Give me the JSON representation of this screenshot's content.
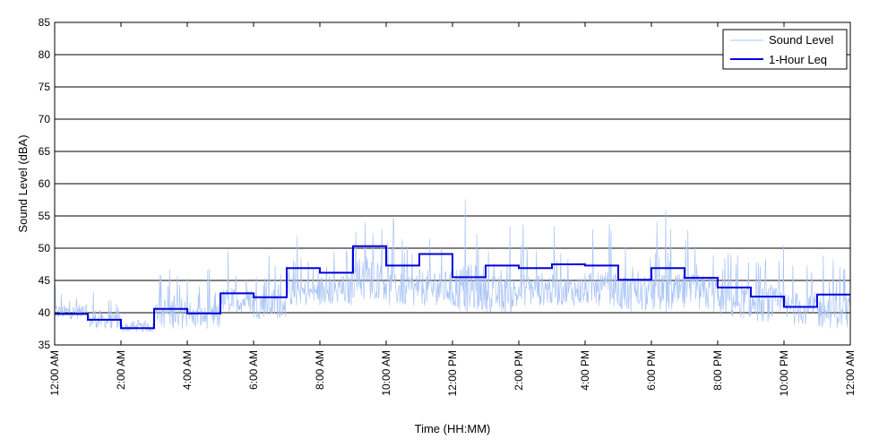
{
  "chart_data": {
    "type": "line",
    "title": "",
    "xlabel": "Time (HH:MM)",
    "ylabel": "Sound Level (dBA)",
    "ylim": [
      35,
      85
    ],
    "xlim": [
      0,
      24
    ],
    "y_ticks": [
      35,
      40,
      45,
      50,
      55,
      60,
      65,
      70,
      75,
      80,
      85
    ],
    "x_ticks": [
      0,
      2,
      4,
      6,
      8,
      10,
      12,
      14,
      16,
      18,
      20,
      22,
      24
    ],
    "x_tick_labels": [
      "12:00 AM",
      "2:00 AM",
      "4:00 AM",
      "6:00 AM",
      "8:00 AM",
      "10:00 AM",
      "12:00 PM",
      "2:00 PM",
      "4:00 PM",
      "6:00 PM",
      "8:00 PM",
      "10:00 PM",
      "12:00 AM"
    ],
    "grid": "horizontal",
    "legend_position": "top-right",
    "series": [
      {
        "name": "Sound Level",
        "color": "#a9c4f5",
        "style": "thin-noisy-line",
        "hourly_profile": [
          {
            "hour": 0,
            "base": 39,
            "peak": 45
          },
          {
            "hour": 1,
            "base": 37.5,
            "peak": 44
          },
          {
            "hour": 2,
            "base": 37,
            "peak": 39
          },
          {
            "hour": 3,
            "base": 37.5,
            "peak": 51
          },
          {
            "hour": 4,
            "base": 37.5,
            "peak": 47
          },
          {
            "hour": 5,
            "base": 40,
            "peak": 50
          },
          {
            "hour": 6,
            "base": 39,
            "peak": 52
          },
          {
            "hour": 7,
            "base": 41,
            "peak": 52
          },
          {
            "hour": 8,
            "base": 41,
            "peak": 54
          },
          {
            "hour": 9,
            "base": 42,
            "peak": 59
          },
          {
            "hour": 10,
            "base": 41,
            "peak": 55
          },
          {
            "hour": 11,
            "base": 41,
            "peak": 56
          },
          {
            "hour": 12,
            "base": 40,
            "peak": 60
          },
          {
            "hour": 13,
            "base": 40,
            "peak": 55
          },
          {
            "hour": 14,
            "base": 41,
            "peak": 55
          },
          {
            "hour": 15,
            "base": 41,
            "peak": 54
          },
          {
            "hour": 16,
            "base": 41,
            "peak": 55
          },
          {
            "hour": 17,
            "base": 40,
            "peak": 55
          },
          {
            "hour": 18,
            "base": 40,
            "peak": 56
          },
          {
            "hour": 19,
            "base": 40,
            "peak": 56
          },
          {
            "hour": 20,
            "base": 39,
            "peak": 54
          },
          {
            "hour": 21,
            "base": 38.5,
            "peak": 53
          },
          {
            "hour": 22,
            "base": 38,
            "peak": 52
          },
          {
            "hour": 23,
            "base": 37.5,
            "peak": 52
          }
        ]
      },
      {
        "name": "1-Hour Leq",
        "color": "#0000dd",
        "style": "step",
        "x": [
          0,
          1,
          2,
          3,
          4,
          5,
          6,
          7,
          8,
          9,
          10,
          11,
          12,
          13,
          14,
          15,
          16,
          17,
          18,
          19,
          20,
          21,
          22,
          23
        ],
        "values": [
          39.8,
          38.9,
          37.6,
          40.6,
          39.9,
          43.0,
          42.4,
          46.9,
          46.2,
          50.3,
          47.3,
          49.1,
          45.5,
          47.3,
          46.9,
          47.5,
          47.3,
          45.1,
          46.9,
          45.4,
          43.9,
          42.5,
          40.9,
          42.8
        ]
      }
    ]
  }
}
